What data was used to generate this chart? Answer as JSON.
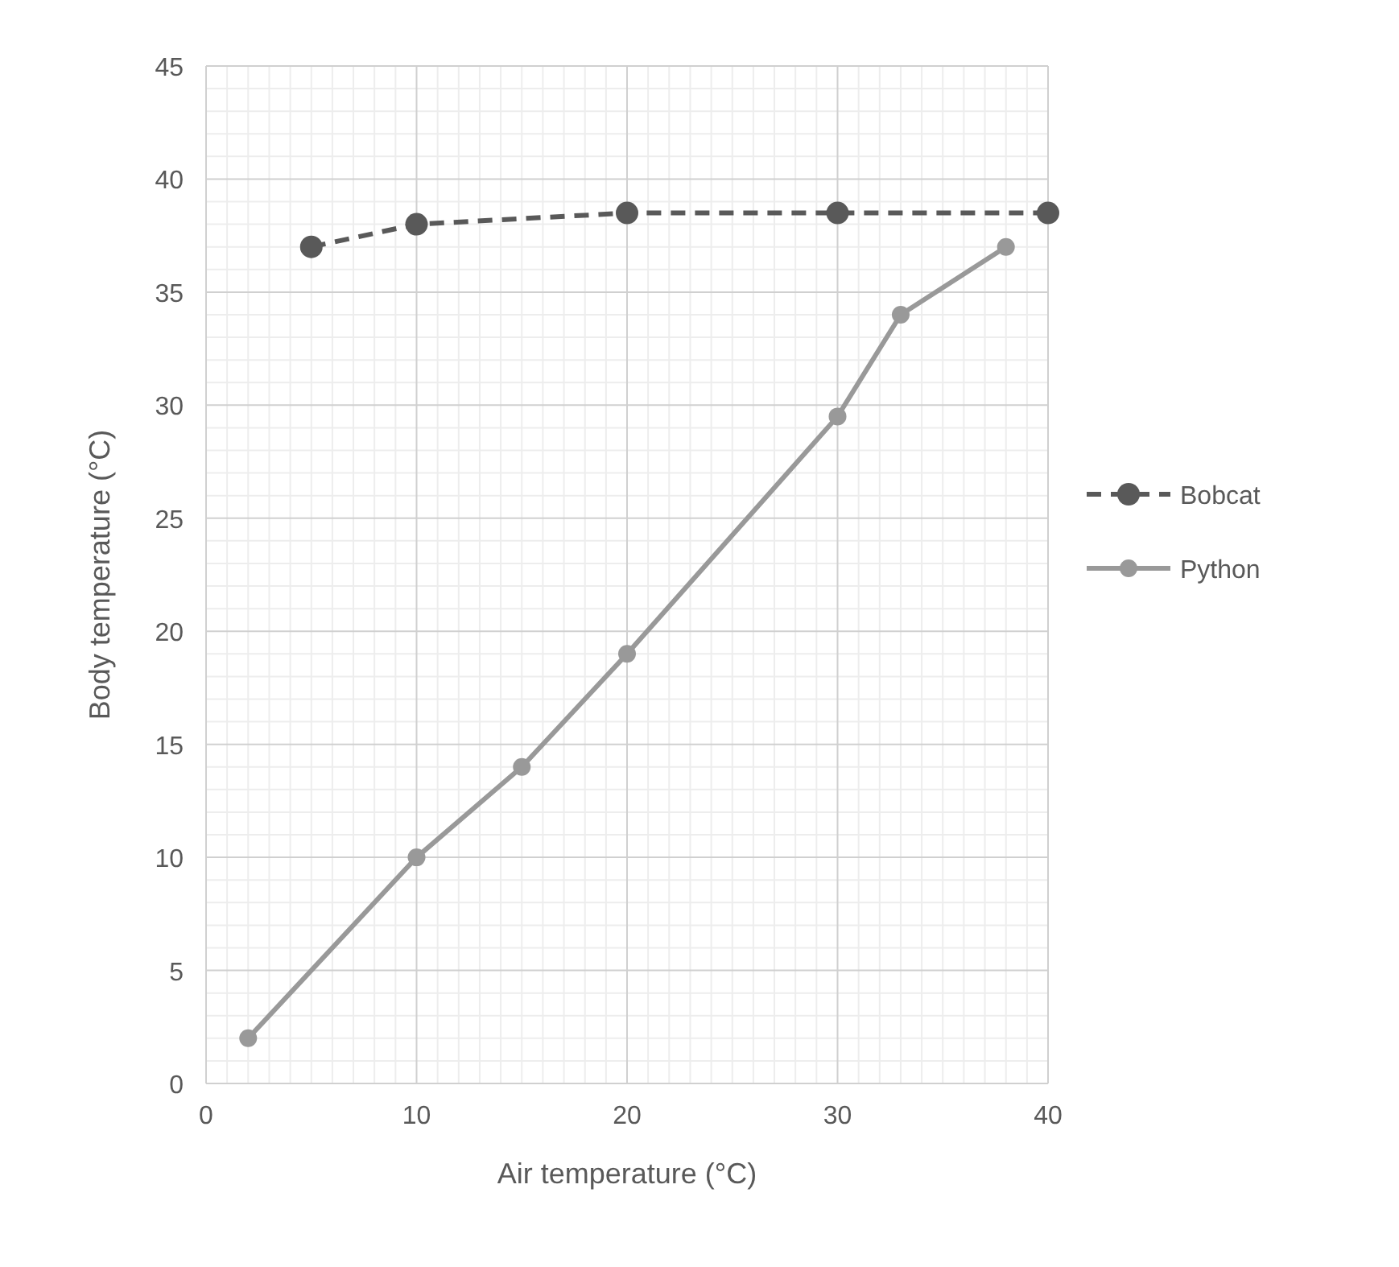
{
  "chart_data": {
    "type": "line",
    "xlabel": "Air temperature (°C)",
    "ylabel": "Body temperature (°C)",
    "xlim": [
      0,
      40
    ],
    "xticks": [
      0,
      10,
      20,
      30,
      40
    ],
    "ylim": [
      0,
      45
    ],
    "yticks": [
      0,
      5,
      10,
      15,
      20,
      25,
      30,
      35,
      40,
      45
    ],
    "grid": true,
    "legend": "right",
    "marker": "circle",
    "series": [
      {
        "name": "Bobcat",
        "color": "#595959",
        "line_style": "dashed",
        "x": [
          5,
          10,
          20,
          30,
          40
        ],
        "values": [
          37,
          38,
          38.5,
          38.5,
          38.5
        ]
      },
      {
        "name": "Python",
        "color": "#999999",
        "line_style": "solid",
        "x": [
          2,
          10,
          15,
          20,
          30,
          33,
          38
        ],
        "values": [
          2,
          10,
          14,
          19,
          29.5,
          34,
          37
        ]
      }
    ]
  }
}
